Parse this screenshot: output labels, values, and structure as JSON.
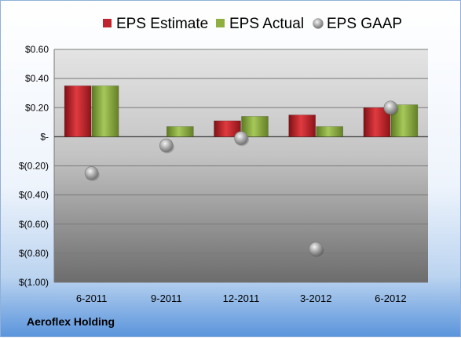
{
  "company": "Aeroflex Holding",
  "chart_data": {
    "type": "bar",
    "categories": [
      "6-2011",
      "9-2011",
      "12-2011",
      "3-2012",
      "6-2012"
    ],
    "series": [
      {
        "name": "EPS Estimate",
        "kind": "bar",
        "color": "#c0242c",
        "values": [
          0.35,
          null,
          0.11,
          0.15,
          0.2
        ]
      },
      {
        "name": "EPS Actual",
        "kind": "bar",
        "color": "#8fb040",
        "values": [
          0.35,
          0.07,
          0.14,
          0.07,
          0.22
        ]
      },
      {
        "name": "EPS GAAP",
        "kind": "point",
        "color": "#a8a8a8",
        "values": [
          -0.25,
          -0.06,
          -0.01,
          -0.77,
          0.2
        ]
      }
    ],
    "ylim": [
      -1.0,
      0.6
    ],
    "yticks": [
      0.6,
      0.4,
      0.2,
      0,
      -0.2,
      -0.4,
      -0.6,
      -0.8,
      -1.0
    ],
    "ytick_labels": [
      "$0.60",
      "$0.40",
      "$0.20",
      "$-",
      "$(0.20)",
      "$(0.40)",
      "$(0.60)",
      "$(0.80)",
      "$(1.00)"
    ],
    "grid": true,
    "legend_position": "top"
  }
}
